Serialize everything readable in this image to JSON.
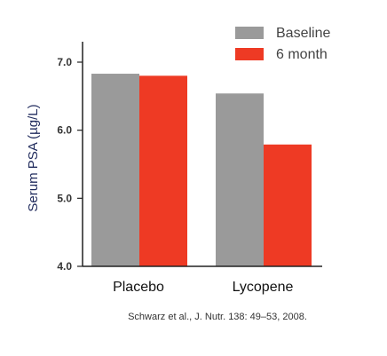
{
  "colors": {
    "baseline": "#9a9a9a",
    "six_month": "#ee3a24",
    "axis": "#222222",
    "ylabel": "#1f2a5c"
  },
  "chart_data": {
    "type": "bar",
    "categories": [
      "Placebo",
      "Lycopene"
    ],
    "series": [
      {
        "name": "Baseline",
        "values": [
          6.83,
          6.54
        ]
      },
      {
        "name": "6 month",
        "values": [
          6.8,
          5.79
        ]
      }
    ],
    "ylabel": "Serum PSA (µg/L)",
    "ylim": [
      4.0,
      7.3
    ],
    "yticks": [
      "4.0",
      "5.0",
      "6.0",
      "7.0"
    ],
    "legend_position": "top-right",
    "grid": false,
    "annotation": "Schwarz et al., J. Nutr. 138: 49–53, 2008."
  }
}
